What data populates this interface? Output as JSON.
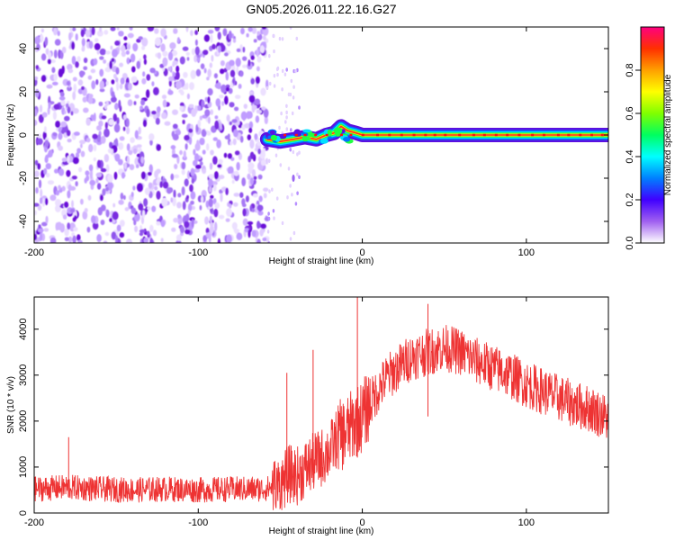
{
  "page": {
    "title": "GN05.2026.011.22.16.G27"
  },
  "chart_data": [
    {
      "type": "heatmap",
      "xlabel": "Height of straight line (km)",
      "ylabel": "Frequency (Hz)",
      "xlim": [
        -200,
        150
      ],
      "ylim": [
        -50,
        50
      ],
      "x_ticks": [
        -200,
        -100,
        0,
        100
      ],
      "x_tick_labels": [
        "-200",
        "-100",
        "0",
        "100"
      ],
      "y_ticks": [
        -40,
        -20,
        0,
        20,
        40
      ],
      "y_tick_labels": [
        "-40",
        "-20",
        "0",
        "20",
        "40"
      ],
      "noise_region": {
        "x_from": -200,
        "x_to": -58,
        "y_from": -50,
        "y_to": 50,
        "dominant_color": "#7a2be0"
      },
      "scatter_region": {
        "x_from": -58,
        "x_to": -38
      },
      "signal_trace": [
        {
          "x": -58,
          "y": -2
        },
        {
          "x": -50,
          "y": -3
        },
        {
          "x": -42,
          "y": -2
        },
        {
          "x": -35,
          "y": -1
        },
        {
          "x": -28,
          "y": -2
        },
        {
          "x": -22,
          "y": 0
        },
        {
          "x": -17,
          "y": 1
        },
        {
          "x": -13,
          "y": 4
        },
        {
          "x": -9,
          "y": 2
        },
        {
          "x": -4,
          "y": 1
        },
        {
          "x": 0,
          "y": 0
        },
        {
          "x": 150,
          "y": 0
        }
      ],
      "colorbar": {
        "label": "Normalized spectral amplitude",
        "range": [
          0,
          1
        ],
        "ticks": [
          0.0,
          0.2,
          0.4,
          0.6,
          0.8
        ],
        "tick_labels": [
          "0.0",
          "0.2",
          "0.4",
          "0.6",
          "0.8"
        ],
        "stops": [
          "#ffffff",
          "#a060f0",
          "#4000ff",
          "#0080ff",
          "#00ffff",
          "#00ff60",
          "#80ff00",
          "#ffff00",
          "#ffa000",
          "#ff3000",
          "#ff0080"
        ]
      }
    },
    {
      "type": "line",
      "xlabel": "Height of straight line (km)",
      "ylabel": "SNR (10 * v/v)",
      "xlim": [
        -200,
        150
      ],
      "ylim": [
        0,
        4700
      ],
      "x_ticks": [
        -200,
        -100,
        0,
        100
      ],
      "x_tick_labels": [
        "-200",
        "-100",
        "0",
        "100"
      ],
      "y_ticks": [
        0,
        1000,
        2000,
        3000,
        4000
      ],
      "y_tick_labels": [
        "0",
        "1000",
        "2000",
        "3000",
        "4000"
      ],
      "color": "#ee3333",
      "series": [
        {
          "x": [
            -200,
            -180,
            -160,
            -140,
            -120,
            -100,
            -80,
            -60,
            -50,
            -45,
            -40,
            -35,
            -30,
            -25,
            -20,
            -15,
            -10,
            -5,
            0,
            5,
            10,
            15,
            20,
            25,
            30,
            35,
            40,
            45,
            50,
            55,
            60,
            70,
            80,
            90,
            100,
            110,
            120,
            130,
            140,
            150
          ],
          "y": [
            520,
            560,
            520,
            500,
            520,
            500,
            520,
            520,
            600,
            850,
            800,
            950,
            1100,
            1200,
            1350,
            1650,
            1750,
            1950,
            2100,
            2400,
            2700,
            2950,
            3100,
            3250,
            3400,
            3450,
            3500,
            3550,
            3600,
            3550,
            3500,
            3300,
            3150,
            3000,
            2800,
            2650,
            2500,
            2350,
            2250,
            2050
          ]
        }
      ],
      "spikes": [
        {
          "x": -179,
          "y": 1650
        },
        {
          "x": -46,
          "y": 3050
        },
        {
          "x": -30,
          "y": 3550
        },
        {
          "x": -3,
          "y": 4700
        },
        {
          "x": 40,
          "y": 4550
        }
      ]
    }
  ]
}
